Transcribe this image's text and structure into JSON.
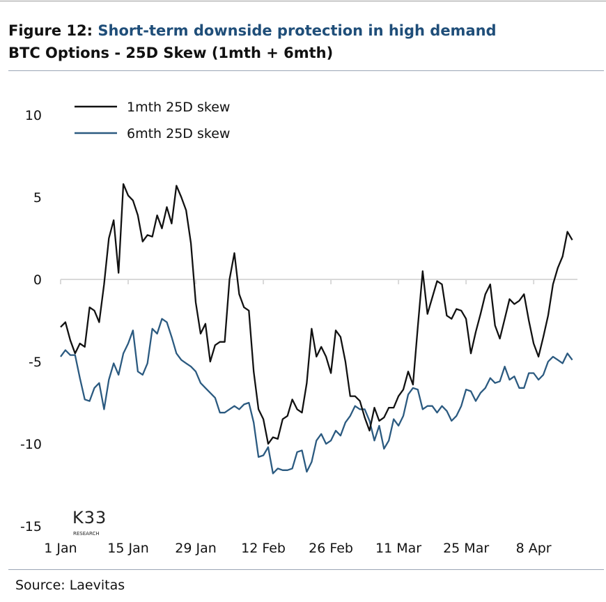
{
  "header": {
    "figure_label": "Figure 12:",
    "title": "Short-term downside protection in high demand",
    "subtitle": "BTC Options - 25D Skew (1mth + 6mth)"
  },
  "footer": {
    "source": "Source: Laevitas"
  },
  "logo": {
    "text": "K33",
    "subtext": "RESEARCH"
  },
  "colors": {
    "title": "#1f4e79",
    "series_1mth": "#111111",
    "series_6mth": "#2b5a80",
    "zero_line": "#d9d9d9"
  },
  "chart_data": {
    "type": "line",
    "title": "BTC Options - 25D Skew (1mth + 6mth)",
    "xlabel": "",
    "ylabel": "",
    "ylim": [
      -15,
      10
    ],
    "yticks": [
      10,
      5,
      0,
      -5,
      -10,
      -15
    ],
    "x_unit": "days since 1 Jan",
    "xticks": [
      {
        "day": 0,
        "label": "1 Jan"
      },
      {
        "day": 14,
        "label": "15 Jan"
      },
      {
        "day": 28,
        "label": "29 Jan"
      },
      {
        "day": 42,
        "label": "12 Feb"
      },
      {
        "day": 56,
        "label": "26 Feb"
      },
      {
        "day": 70,
        "label": "11 Mar"
      },
      {
        "day": 84,
        "label": "25 Mar"
      },
      {
        "day": 98,
        "label": "8 Apr"
      }
    ],
    "legend_position": "top-left",
    "series": [
      {
        "name": "1mth 25D skew",
        "color": "#111111",
        "values": [
          -2.9,
          -2.6,
          -3.7,
          -4.5,
          -3.9,
          -4.1,
          -1.7,
          -1.9,
          -2.6,
          -0.3,
          2.5,
          3.6,
          0.4,
          5.8,
          5.1,
          4.8,
          3.9,
          2.3,
          2.7,
          2.6,
          3.9,
          3.1,
          4.4,
          3.4,
          5.7,
          5.0,
          4.2,
          2.2,
          -1.4,
          -3.3,
          -2.7,
          -5.0,
          -4.0,
          -3.8,
          -3.8,
          0.0,
          1.6,
          -0.9,
          -1.7,
          -1.9,
          -5.6,
          -7.9,
          -8.5,
          -10.0,
          -9.6,
          -9.7,
          -8.5,
          -8.3,
          -7.3,
          -7.9,
          -8.1,
          -6.3,
          -3.0,
          -4.7,
          -4.1,
          -4.7,
          -5.7,
          -3.1,
          -3.5,
          -5.0,
          -7.1,
          -7.1,
          -7.4,
          -8.4,
          -9.2,
          -7.8,
          -8.6,
          -8.4,
          -7.8,
          -7.8,
          -7.1,
          -6.7,
          -5.6,
          -6.4,
          -2.9,
          0.5,
          -2.1,
          -1.1,
          -0.1,
          -0.3,
          -2.2,
          -2.4,
          -1.8,
          -1.9,
          -2.4,
          -4.5,
          -3.2,
          -2.1,
          -0.9,
          -0.3,
          -2.8,
          -3.6,
          -2.4,
          -1.2,
          -1.5,
          -1.3,
          -0.9,
          -2.5,
          -3.9,
          -4.7,
          -3.5,
          -2.2,
          -0.3,
          0.7,
          1.4,
          2.9,
          2.4
        ]
      },
      {
        "name": "6mth 25D skew",
        "color": "#2b5a80",
        "values": [
          -4.7,
          -4.3,
          -4.6,
          -4.6,
          -6.0,
          -7.3,
          -7.4,
          -6.6,
          -6.3,
          -7.9,
          -6.1,
          -5.1,
          -5.8,
          -4.5,
          -3.9,
          -3.1,
          -5.6,
          -5.8,
          -5.1,
          -3.0,
          -3.3,
          -2.4,
          -2.6,
          -3.5,
          -4.5,
          -4.9,
          -5.1,
          -5.3,
          -5.6,
          -6.3,
          -6.6,
          -6.9,
          -7.2,
          -8.1,
          -8.1,
          -7.9,
          -7.7,
          -7.9,
          -7.6,
          -7.5,
          -8.7,
          -10.8,
          -10.7,
          -10.2,
          -11.8,
          -11.5,
          -11.6,
          -11.6,
          -11.5,
          -10.5,
          -10.4,
          -11.7,
          -11.1,
          -9.8,
          -9.4,
          -10.0,
          -9.8,
          -9.2,
          -9.5,
          -8.7,
          -8.3,
          -7.7,
          -7.9,
          -7.9,
          -8.6,
          -9.8,
          -8.9,
          -10.3,
          -9.8,
          -8.5,
          -8.9,
          -8.3,
          -7.0,
          -6.6,
          -6.7,
          -7.9,
          -7.7,
          -7.7,
          -8.1,
          -7.7,
          -8.0,
          -8.6,
          -8.3,
          -7.7,
          -6.7,
          -6.8,
          -7.4,
          -6.9,
          -6.6,
          -6.0,
          -6.3,
          -6.2,
          -5.3,
          -6.1,
          -5.9,
          -6.6,
          -6.6,
          -5.7,
          -5.7,
          -6.1,
          -5.8,
          -5.0,
          -4.7,
          -4.9,
          -5.1,
          -4.5,
          -4.9
        ]
      }
    ]
  }
}
